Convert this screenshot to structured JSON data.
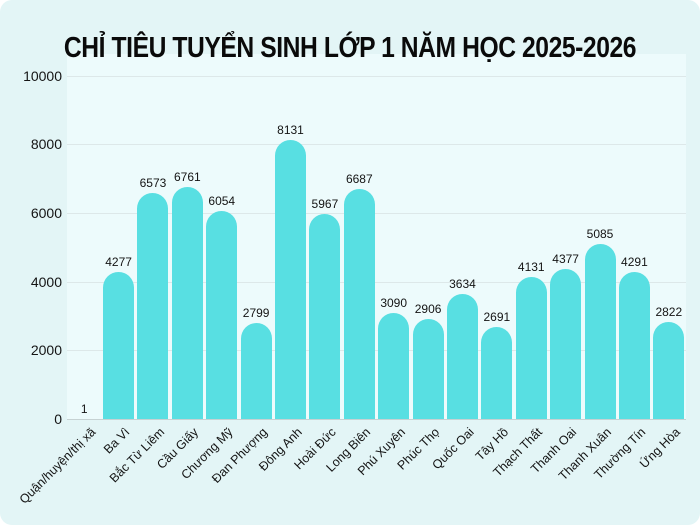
{
  "card": {
    "background": "#e3f5f6",
    "plot_background": "#edfbfc",
    "grid_color": "#dde8e9",
    "axis_line_color": "#c6d2d3",
    "text_color": "#141414"
  },
  "chart_data": {
    "type": "bar",
    "title": "CHỈ TIÊU TUYỂN SINH LỚP 1 NĂM HỌC 2025-2026",
    "categories": [
      "Quận/huyện/thị xã",
      "Ba Vì",
      "Bắc Từ Liêm",
      "Cầu Giấy",
      "Chương Mỹ",
      "Đan Phượng",
      "Đông Anh",
      "Hoài Đức",
      "Long Biên",
      "Phú Xuyên",
      "Phúc Thọ",
      "Quốc Oai",
      "Tây Hồ",
      "Thạch Thất",
      "Thanh Oai",
      "Thanh Xuân",
      "Thường Tín",
      "Ứng Hòa"
    ],
    "values": [
      1,
      4277,
      6573,
      6761,
      6054,
      2799,
      8131,
      5967,
      6687,
      3090,
      2906,
      3634,
      2691,
      4131,
      4377,
      5085,
      4291,
      2822
    ],
    "y_ticks": [
      0,
      2000,
      4000,
      6000,
      8000,
      10000
    ],
    "ylim": [
      0,
      10000
    ],
    "xlabel": "",
    "ylabel": "",
    "grid": true,
    "legend": "none",
    "bar_color": "#58dfe2",
    "data_labels": true,
    "x_label_rotation": -45
  }
}
